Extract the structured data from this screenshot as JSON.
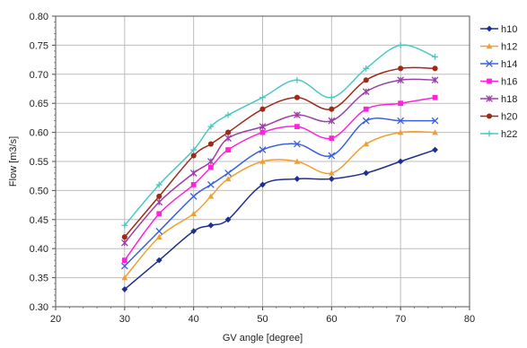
{
  "chart_data": {
    "type": "line",
    "title": "",
    "xlabel": "GV angle [degree]",
    "ylabel": "Flow [m3/s]",
    "xlim": [
      20,
      80
    ],
    "ylim": [
      0.3,
      0.8
    ],
    "x_ticks": [
      "20",
      "30",
      "40",
      "50",
      "60",
      "70",
      "80"
    ],
    "y_ticks": [
      "0.30",
      "0.35",
      "0.40",
      "0.45",
      "0.50",
      "0.55",
      "0.60",
      "0.65",
      "0.70",
      "0.75",
      "0.80"
    ],
    "grid": "both",
    "legend_position": "right",
    "x": [
      30,
      35,
      40,
      42.5,
      45,
      50,
      55,
      60,
      65,
      70,
      75
    ],
    "series": [
      {
        "name": "h10",
        "color": "#1f2f8f",
        "marker": "diamond",
        "values": [
          0.33,
          0.38,
          0.43,
          0.44,
          0.45,
          0.51,
          0.52,
          0.52,
          0.53,
          0.55,
          0.57
        ]
      },
      {
        "name": "h12",
        "color": "#f0a030",
        "marker": "triangle",
        "values": [
          0.35,
          0.42,
          0.46,
          0.49,
          0.52,
          0.55,
          0.55,
          0.53,
          0.58,
          0.6,
          0.6
        ]
      },
      {
        "name": "h14",
        "color": "#3a60e0",
        "marker": "x",
        "values": [
          0.37,
          0.43,
          0.49,
          0.51,
          0.53,
          0.57,
          0.58,
          0.56,
          0.62,
          0.62,
          0.62
        ]
      },
      {
        "name": "h16",
        "color": "#ff22dd",
        "marker": "square",
        "values": [
          0.38,
          0.46,
          0.51,
          0.54,
          0.57,
          0.6,
          0.61,
          0.59,
          0.64,
          0.65,
          0.66
        ]
      },
      {
        "name": "h18",
        "color": "#9b3fa8",
        "marker": "star",
        "values": [
          0.41,
          0.48,
          0.53,
          0.55,
          0.59,
          0.61,
          0.63,
          0.62,
          0.67,
          0.69,
          0.69
        ]
      },
      {
        "name": "h20",
        "color": "#9e2a1a",
        "marker": "circle",
        "values": [
          0.42,
          0.49,
          0.56,
          0.58,
          0.6,
          0.64,
          0.66,
          0.64,
          0.69,
          0.71,
          0.71
        ]
      },
      {
        "name": "h22",
        "color": "#4cc7c2",
        "marker": "plus",
        "values": [
          0.44,
          0.51,
          0.57,
          0.61,
          0.63,
          0.66,
          0.69,
          0.66,
          0.71,
          0.75,
          0.73
        ]
      }
    ]
  }
}
